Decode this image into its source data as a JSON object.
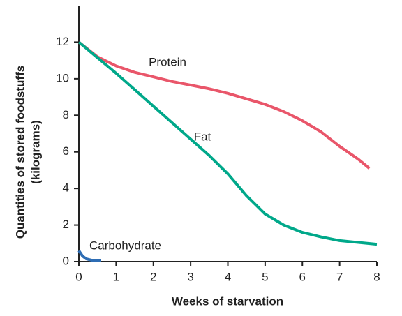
{
  "chart_data": {
    "type": "line",
    "x_label": "Weeks of starvation",
    "y_label": [
      "Quantities of stored foodstuffs",
      "(kilograms)"
    ],
    "xlim": [
      0,
      8
    ],
    "ylim": [
      0,
      14
    ],
    "xticks": [
      0,
      1,
      2,
      3,
      4,
      5,
      6,
      7,
      8
    ],
    "yticks": [
      0,
      2,
      4,
      6,
      8,
      10,
      12
    ],
    "series": [
      {
        "name": "Protein",
        "color": "#e9566a",
        "x": [
          0,
          0.5,
          1,
          1.5,
          2,
          2.5,
          3,
          3.5,
          4,
          4.5,
          5,
          5.5,
          6,
          6.5,
          7,
          7.5,
          7.8
        ],
        "values": [
          12,
          11.2,
          10.7,
          10.35,
          10.1,
          9.85,
          9.65,
          9.45,
          9.2,
          8.9,
          8.6,
          8.2,
          7.7,
          7.1,
          6.3,
          5.6,
          5.1
        ]
      },
      {
        "name": "Fat",
        "color": "#00a88a",
        "x": [
          0,
          1,
          2,
          3,
          3.5,
          4,
          4.5,
          5,
          5.5,
          6,
          6.5,
          7,
          7.5,
          8
        ],
        "values": [
          12,
          10.3,
          8.5,
          6.7,
          5.8,
          4.8,
          3.6,
          2.6,
          2.0,
          1.6,
          1.35,
          1.15,
          1.05,
          0.95
        ]
      },
      {
        "name": "Carbohydrate",
        "color": "#2e6db4",
        "x": [
          0,
          0.1,
          0.2,
          0.4,
          0.6
        ],
        "values": [
          0.6,
          0.3,
          0.15,
          0.05,
          0.05
        ]
      }
    ]
  }
}
